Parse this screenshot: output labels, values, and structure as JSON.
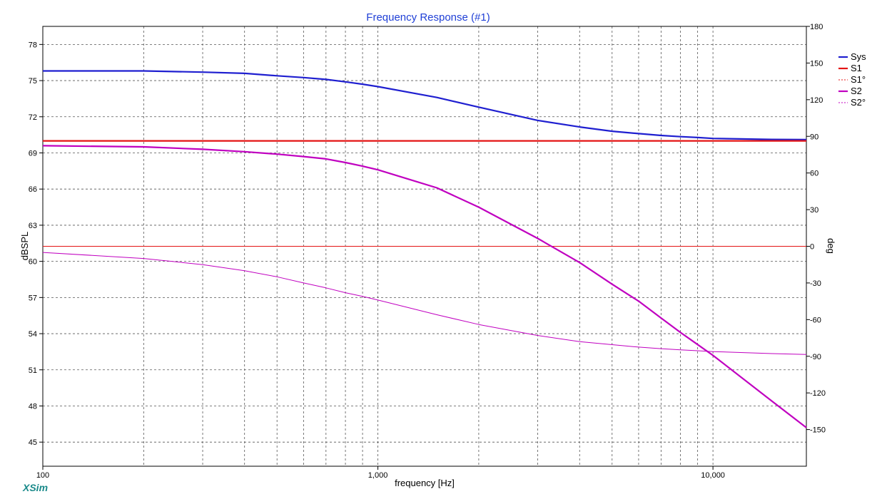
{
  "chart_data": {
    "type": "line",
    "title": "Frequency Response (#1)",
    "xlabel": "frequency [Hz]",
    "ylabel": "dBSPL",
    "y2label": "deg",
    "x_scale": "log",
    "xlim": [
      100,
      19000
    ],
    "ylim": [
      43,
      79.5
    ],
    "y2lim": [
      -180,
      180
    ],
    "x_major_ticks": [
      100,
      1000,
      10000
    ],
    "x_tick_labels": [
      "100",
      "1,000",
      "10,000"
    ],
    "x_minor_ticks": [
      200,
      300,
      400,
      500,
      600,
      700,
      800,
      900,
      2000,
      3000,
      4000,
      5000,
      6000,
      7000,
      8000,
      9000
    ],
    "y_ticks": [
      45,
      48,
      51,
      54,
      57,
      60,
      63,
      66,
      69,
      72,
      75,
      78
    ],
    "y2_ticks": [
      -150,
      -120,
      -90,
      -60,
      -30,
      0,
      30,
      60,
      90,
      120,
      150,
      180
    ],
    "grid": true,
    "legend_position": "right",
    "series": [
      {
        "name": "Sys",
        "axis": "left",
        "color": "#1f1fd0",
        "style": "solid-thick",
        "x": [
          100,
          200,
          300,
          400,
          500,
          600,
          700,
          800,
          900,
          1000,
          1500,
          2000,
          3000,
          4000,
          5000,
          6000,
          7000,
          8000,
          9000,
          10000,
          15000,
          19000
        ],
        "y": [
          75.8,
          75.8,
          75.7,
          75.6,
          75.4,
          75.25,
          75.1,
          74.9,
          74.7,
          74.5,
          73.6,
          72.8,
          71.7,
          71.15,
          70.8,
          70.6,
          70.45,
          70.35,
          70.28,
          70.2,
          70.12,
          70.1
        ]
      },
      {
        "name": "S1",
        "axis": "left",
        "color": "#e41414",
        "style": "solid-thick",
        "x": [
          100,
          19000
        ],
        "y": [
          70.0,
          70.0
        ]
      },
      {
        "name": "S1°",
        "axis": "right",
        "color": "#e41414",
        "style": "dashed-thin",
        "x": [
          100,
          19000
        ],
        "y": [
          0,
          0
        ]
      },
      {
        "name": "S2",
        "axis": "left",
        "color": "#c000c0",
        "style": "solid-thick",
        "x": [
          100,
          200,
          300,
          400,
          500,
          600,
          700,
          800,
          900,
          1000,
          1500,
          2000,
          3000,
          4000,
          5000,
          6000,
          7000,
          8000,
          9000,
          10000,
          15000,
          19000
        ],
        "y": [
          69.6,
          69.5,
          69.3,
          69.1,
          68.9,
          68.7,
          68.5,
          68.2,
          67.9,
          67.6,
          66.1,
          64.5,
          61.9,
          59.9,
          58.1,
          56.7,
          55.3,
          54.1,
          53.1,
          52.2,
          48.4,
          46.2
        ]
      },
      {
        "name": "S2°",
        "axis": "right",
        "color": "#c000c0",
        "style": "dashed-thin",
        "x": [
          100,
          200,
          300,
          400,
          500,
          600,
          700,
          800,
          900,
          1000,
          1500,
          2000,
          3000,
          4000,
          5000,
          6000,
          7000,
          8000,
          9000,
          10000,
          15000,
          19000
        ],
        "y": [
          -5,
          -10,
          -15,
          -20,
          -25,
          -30,
          -34,
          -38,
          -41,
          -44,
          -56,
          -64,
          -73,
          -78,
          -80.5,
          -82.5,
          -83.8,
          -84.8,
          -85.5,
          -86.2,
          -87.8,
          -88.5
        ]
      }
    ]
  },
  "branding": {
    "label": "XSim"
  }
}
